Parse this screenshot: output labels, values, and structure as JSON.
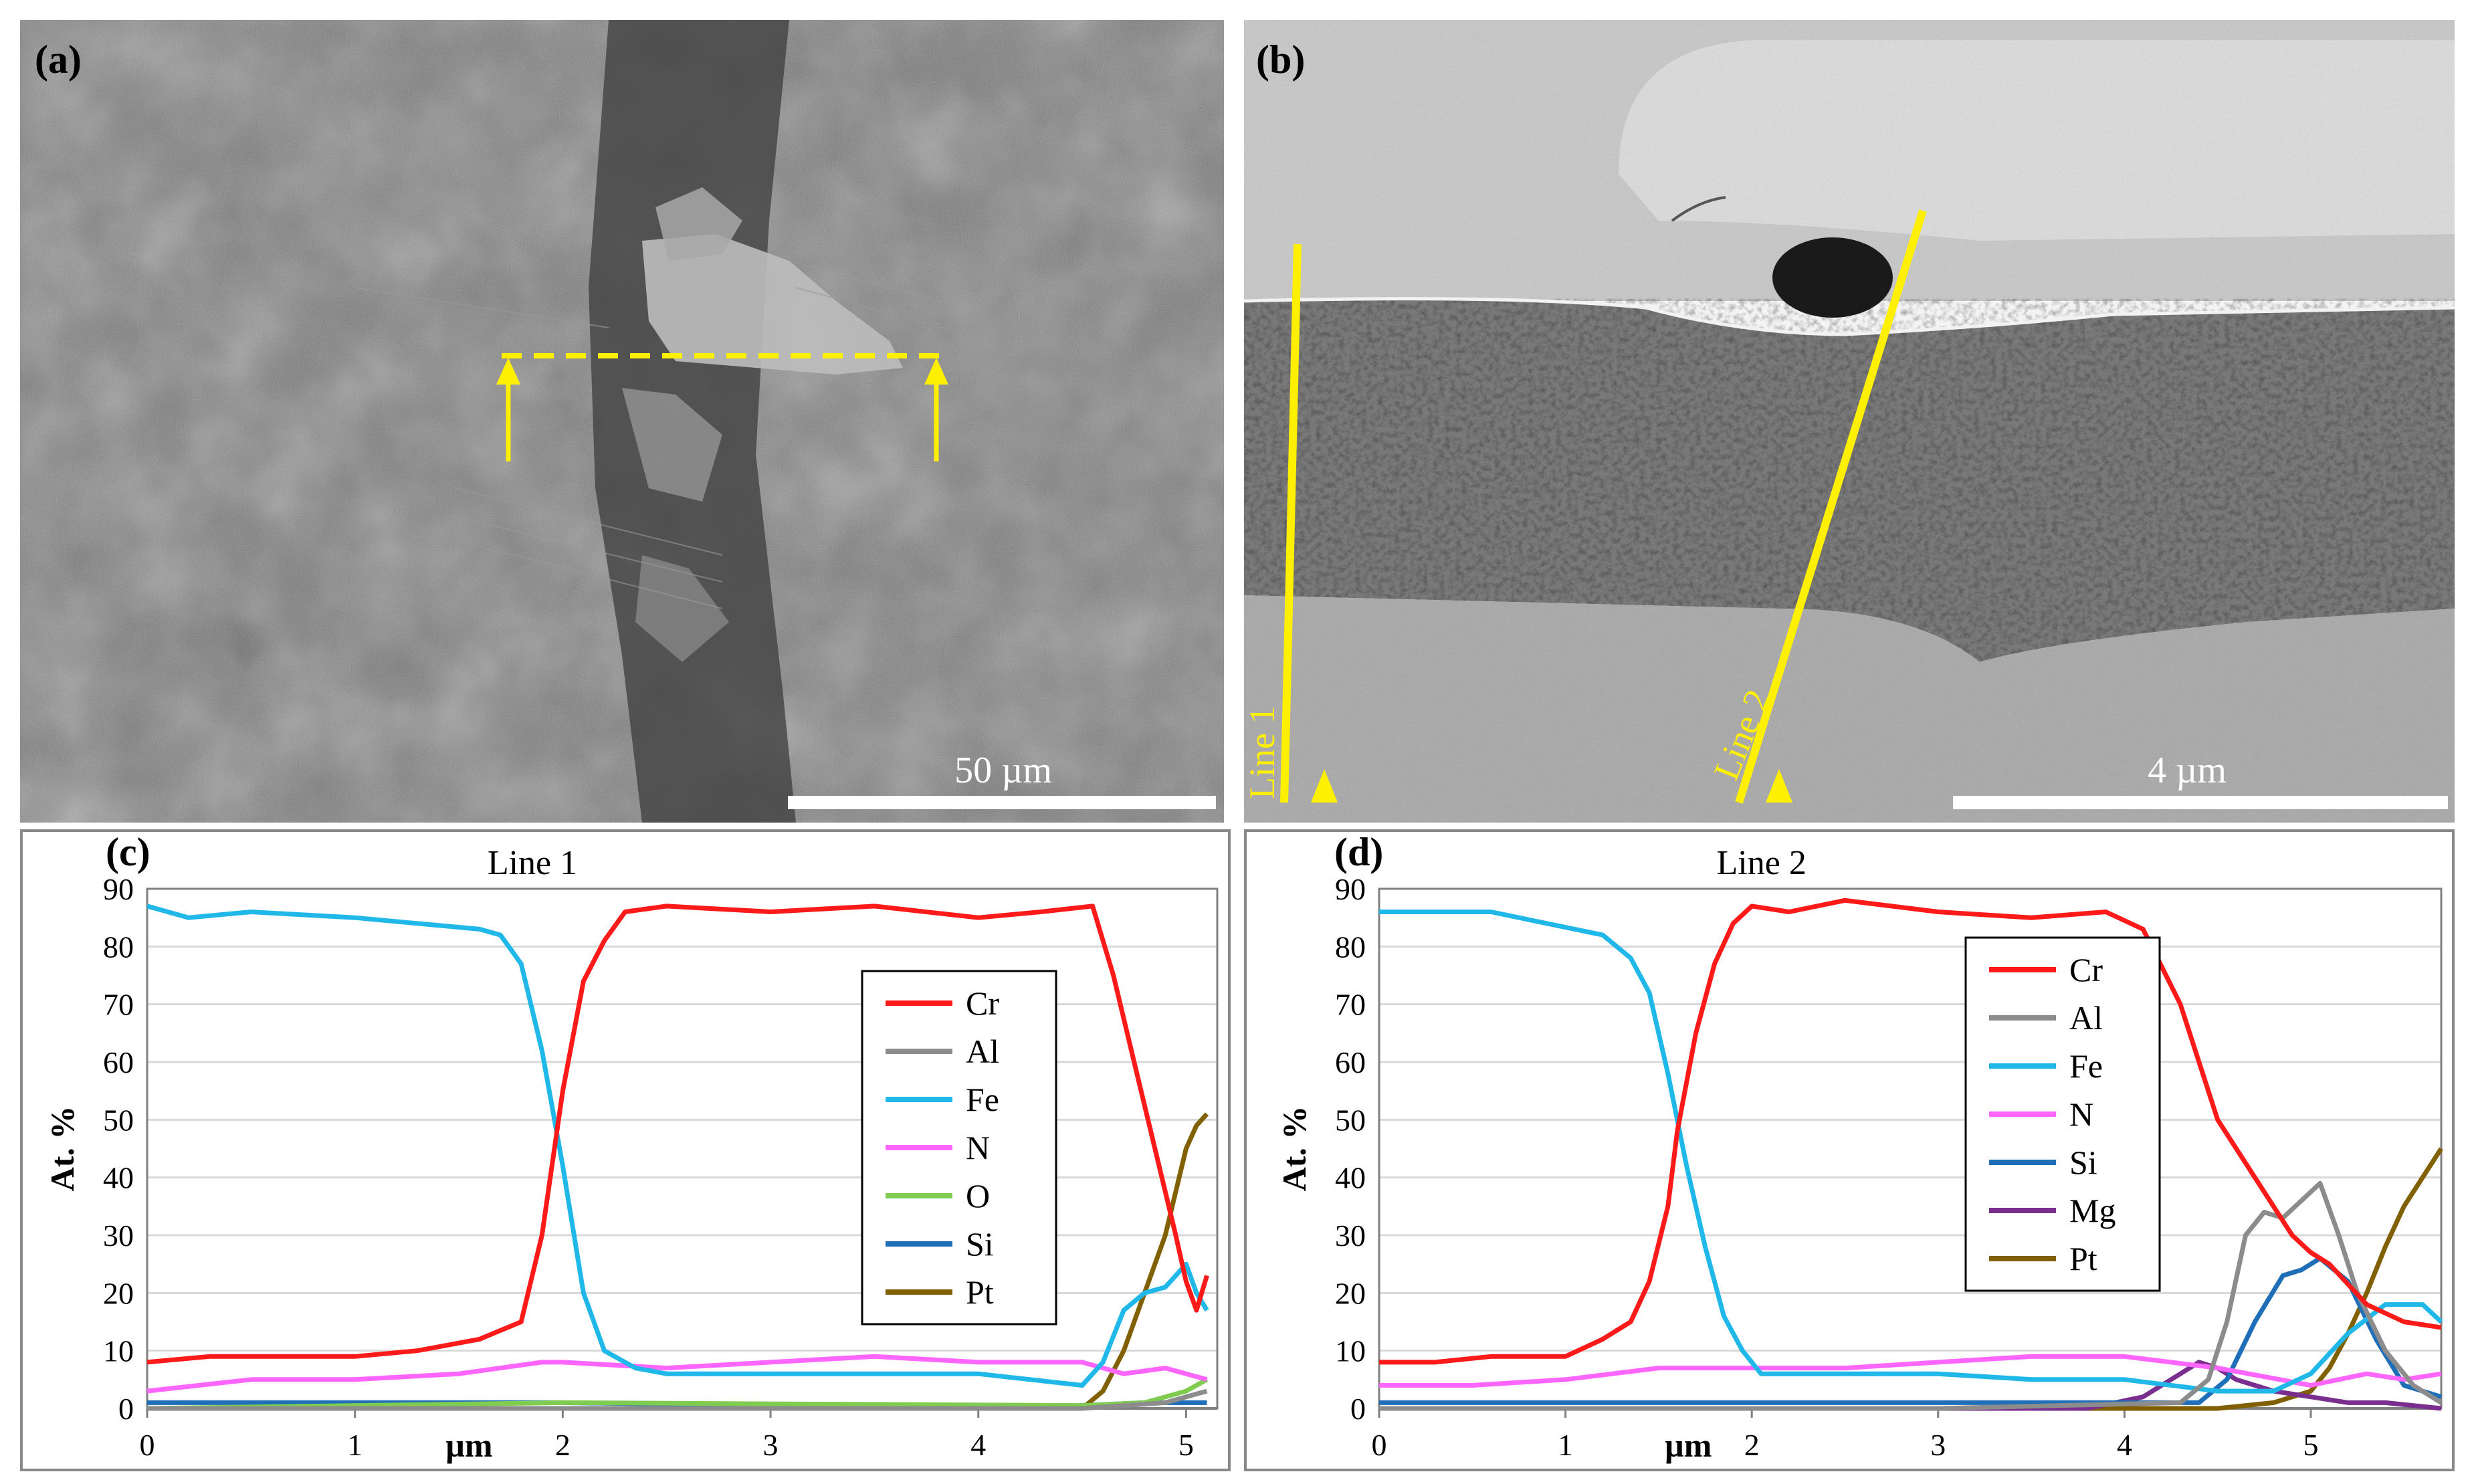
{
  "panels": {
    "a": {
      "label": "(a)",
      "scale_bar": "50 µm"
    },
    "b": {
      "label": "(b)",
      "scale_bar": "4 µm",
      "line1_label": "Line 1",
      "line2_label": "Line 2"
    },
    "c": {
      "label": "(c)"
    },
    "d": {
      "label": "(d)"
    }
  },
  "colors": {
    "Cr": "#ff1a1a",
    "Al": "#8c8c8c",
    "Fe": "#1fb8e8",
    "N": "#ff66ff",
    "O": "#80cc50",
    "Si": "#1f6fb8",
    "Mg": "#7a2f8f",
    "Pt": "#806000",
    "grid": "#d9d9d9",
    "annotation": "#ffef00"
  },
  "chart_data": [
    {
      "type": "line",
      "title": "Line 1",
      "xlabel": "µm",
      "ylabel": "At. %",
      "xlim": [
        0,
        5.15
      ],
      "ylim": [
        0,
        90
      ],
      "xticks": [
        0,
        1,
        2,
        3,
        4,
        5
      ],
      "yticks": [
        0,
        10,
        20,
        30,
        40,
        50,
        60,
        70,
        80,
        90
      ],
      "grid": "horizontal",
      "legend": "right",
      "legend_order": [
        "Cr",
        "Al",
        "Fe",
        "N",
        "O",
        "Si",
        "Pt"
      ],
      "series": [
        {
          "name": "Cr",
          "x": [
            0,
            0.3,
            0.6,
            1.0,
            1.3,
            1.6,
            1.8,
            1.9,
            2.0,
            2.1,
            2.2,
            2.3,
            2.5,
            3.0,
            3.5,
            4.0,
            4.3,
            4.55,
            4.65,
            4.75,
            4.85,
            4.95,
            5.0,
            5.05,
            5.1
          ],
          "y": [
            8,
            9,
            9,
            9,
            10,
            12,
            15,
            30,
            55,
            74,
            81,
            86,
            87,
            86,
            87,
            85,
            86,
            87,
            75,
            60,
            45,
            30,
            22,
            17,
            23
          ]
        },
        {
          "name": "Al",
          "x": [
            0,
            2.0,
            4.5,
            4.7,
            4.9,
            5.0,
            5.1
          ],
          "y": [
            0,
            0,
            0,
            0.5,
            1,
            2,
            3
          ]
        },
        {
          "name": "Fe",
          "x": [
            0,
            0.2,
            0.5,
            1.0,
            1.3,
            1.6,
            1.7,
            1.8,
            1.9,
            2.0,
            2.1,
            2.2,
            2.35,
            2.5,
            3.0,
            3.5,
            4.0,
            4.5,
            4.6,
            4.7,
            4.8,
            4.9,
            5.0,
            5.05,
            5.1
          ],
          "y": [
            87,
            85,
            86,
            85,
            84,
            83,
            82,
            77,
            62,
            42,
            20,
            10,
            7,
            6,
            6,
            6,
            6,
            4,
            8,
            17,
            20,
            21,
            25,
            20,
            17
          ]
        },
        {
          "name": "N",
          "x": [
            0,
            0.5,
            1.0,
            1.5,
            1.9,
            2.0,
            2.5,
            3.0,
            3.5,
            4.0,
            4.5,
            4.7,
            4.9,
            5.1
          ],
          "y": [
            3,
            5,
            5,
            6,
            8,
            8,
            7,
            8,
            9,
            8,
            8,
            6,
            7,
            5
          ]
        },
        {
          "name": "O",
          "x": [
            0,
            2.0,
            4.5,
            4.8,
            5.0,
            5.1
          ],
          "y": [
            0,
            1,
            0.5,
            1,
            3,
            5
          ]
        },
        {
          "name": "Si",
          "x": [
            0,
            1.0,
            2.0,
            3.0,
            4.0,
            4.5,
            4.8,
            5.1
          ],
          "y": [
            1,
            1,
            1,
            0.5,
            0.5,
            0.5,
            1,
            1
          ]
        },
        {
          "name": "Pt",
          "x": [
            0,
            1.0,
            2.0,
            3.0,
            4.0,
            4.5,
            4.6,
            4.7,
            4.8,
            4.9,
            5.0,
            5.05,
            5.1
          ],
          "y": [
            0,
            0,
            0,
            0,
            0,
            0,
            3,
            10,
            20,
            30,
            45,
            49,
            51
          ]
        }
      ]
    },
    {
      "type": "line",
      "title": "Line 2",
      "xlabel": "µm",
      "ylabel": "At. %",
      "xlim": [
        0,
        5.7
      ],
      "ylim": [
        0,
        90
      ],
      "xticks": [
        0,
        1,
        2,
        3,
        4,
        5
      ],
      "yticks": [
        0,
        10,
        20,
        30,
        40,
        50,
        60,
        70,
        80,
        90
      ],
      "grid": "horizontal",
      "legend": "right",
      "legend_order": [
        "Cr",
        "Al",
        "Fe",
        "N",
        "Si",
        "Mg",
        "Pt"
      ],
      "series": [
        {
          "name": "Cr",
          "x": [
            0,
            0.3,
            0.6,
            1.0,
            1.2,
            1.35,
            1.45,
            1.55,
            1.6,
            1.7,
            1.8,
            1.9,
            2.0,
            2.2,
            2.5,
            3.0,
            3.5,
            3.9,
            4.1,
            4.3,
            4.5,
            4.7,
            4.9,
            5.0,
            5.1,
            5.3,
            5.5,
            5.7
          ],
          "y": [
            8,
            8,
            9,
            9,
            12,
            15,
            22,
            35,
            48,
            65,
            77,
            84,
            87,
            86,
            88,
            86,
            85,
            86,
            83,
            70,
            50,
            40,
            30,
            27,
            25,
            18,
            15,
            14
          ]
        },
        {
          "name": "Al",
          "x": [
            0,
            3.0,
            4.3,
            4.45,
            4.55,
            4.65,
            4.75,
            4.85,
            4.95,
            5.05,
            5.15,
            5.25,
            5.4,
            5.55,
            5.7
          ],
          "y": [
            0,
            0,
            1,
            5,
            15,
            30,
            34,
            33,
            36,
            39,
            30,
            20,
            10,
            4,
            1
          ]
        },
        {
          "name": "Fe",
          "x": [
            0,
            0.3,
            0.6,
            0.9,
            1.2,
            1.35,
            1.45,
            1.55,
            1.65,
            1.75,
            1.85,
            1.95,
            2.05,
            2.3,
            3.0,
            3.5,
            4.0,
            4.5,
            4.8,
            5.0,
            5.2,
            5.4,
            5.6,
            5.7
          ],
          "y": [
            86,
            86,
            86,
            84,
            82,
            78,
            72,
            58,
            42,
            28,
            16,
            10,
            6,
            6,
            6,
            5,
            5,
            3,
            3,
            6,
            13,
            18,
            18,
            15
          ]
        },
        {
          "name": "N",
          "x": [
            0,
            0.5,
            1.0,
            1.5,
            2.0,
            2.5,
            3.0,
            3.5,
            4.0,
            4.5,
            5.0,
            5.3,
            5.5,
            5.7
          ],
          "y": [
            4,
            4,
            5,
            7,
            7,
            7,
            8,
            9,
            9,
            7,
            4,
            6,
            5,
            6
          ]
        },
        {
          "name": "Si",
          "x": [
            0,
            2.0,
            4.0,
            4.4,
            4.55,
            4.7,
            4.85,
            4.95,
            5.05,
            5.2,
            5.35,
            5.5,
            5.7
          ],
          "y": [
            1,
            1,
            1,
            1,
            5,
            15,
            23,
            24,
            26,
            22,
            12,
            4,
            2
          ]
        },
        {
          "name": "Mg",
          "x": [
            0,
            2.0,
            3.8,
            4.1,
            4.3,
            4.4,
            4.5,
            4.6,
            4.8,
            5.0,
            5.2,
            5.4,
            5.7
          ],
          "y": [
            0,
            0,
            0,
            2,
            6,
            8,
            7,
            5,
            3,
            2,
            1,
            1,
            0
          ]
        },
        {
          "name": "Pt",
          "x": [
            0,
            3.0,
            4.5,
            4.8,
            5.0,
            5.1,
            5.2,
            5.3,
            5.4,
            5.5,
            5.6,
            5.7
          ],
          "y": [
            0,
            0,
            0,
            1,
            3,
            7,
            13,
            20,
            28,
            35,
            40,
            45
          ]
        }
      ]
    }
  ]
}
